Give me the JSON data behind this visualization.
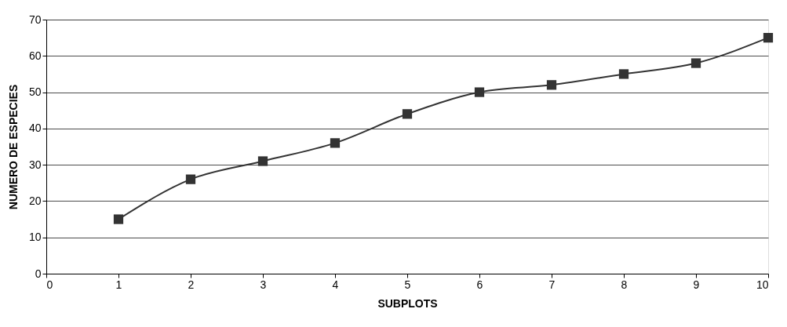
{
  "chart_data": {
    "type": "line",
    "xlabel": "SUBPLOTS",
    "ylabel": "NUMERO DE ESPECIES",
    "x": [
      1,
      2,
      3,
      4,
      5,
      6,
      7,
      8,
      9,
      10
    ],
    "series": [
      {
        "color": "#333333",
        "values": [
          15,
          26,
          31,
          36,
          44,
          50,
          52,
          55,
          58,
          65
        ]
      }
    ],
    "xlim": [
      0,
      10
    ],
    "xticks": [
      0,
      1,
      2,
      3,
      4,
      5,
      6,
      7,
      8,
      9,
      10
    ],
    "ylim": [
      0,
      70
    ],
    "yticks": [
      0,
      10,
      20,
      30,
      40,
      50,
      60,
      70
    ],
    "grid": "y",
    "marker": "square",
    "line_style": "solid"
  }
}
